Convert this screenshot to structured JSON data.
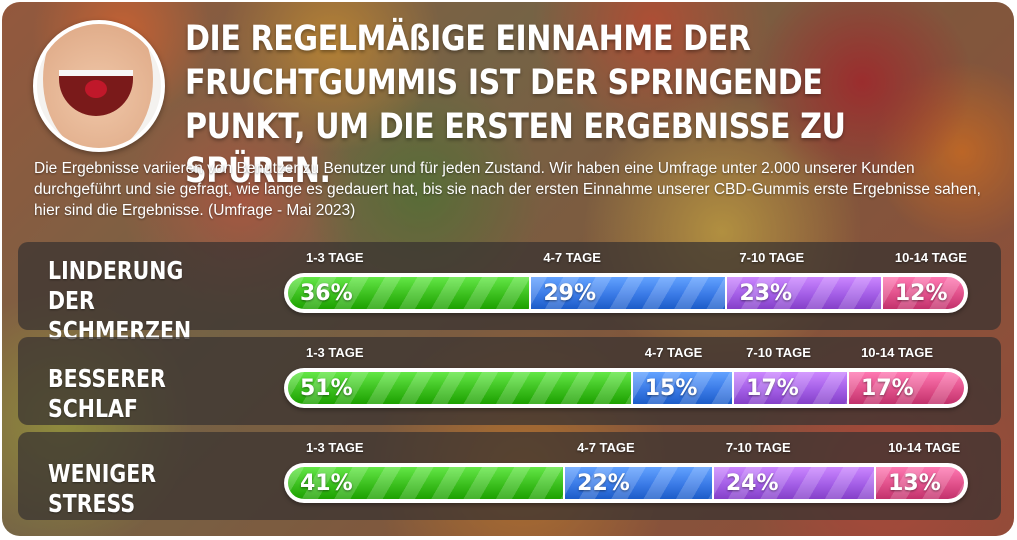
{
  "title": "DIE REGELMÄßIGE EINNAHME DER FRUCHTGUMMIS IST DER SPRINGENDE PUNKT, UM DIE ERSTEN ERGEBNISSE ZU SPÜREN.",
  "intro": "Die Ergebnisse variieren von Benutzer zu Benutzer und für jeden Zustand. Wir haben eine Umfrage unter 2.000 unserer Kunden durchgeführt und sie gefragt, wie lange es gedauert hat, bis sie nach der ersten Einnahme unserer CBD-Gummis erste Ergebnisse sahen, hier sind die Ergebnisse. (Umfrage - Mai 2023)",
  "avatar_icon": "smiling-mouth-with-gummy",
  "segment_colors": [
    "#3bbf1e",
    "#3a7ae6",
    "#a35ee6",
    "#e0508a"
  ],
  "rows": [
    {
      "label_lines": [
        "LINDERUNG",
        "DER SCHMERZEN"
      ],
      "segments": [
        {
          "period": "1-3 TAGE",
          "value": "36%",
          "share": 36
        },
        {
          "period": "4-7 TAGE",
          "value": "29%",
          "share": 29
        },
        {
          "period": "7-10 TAGE",
          "value": "23%",
          "share": 23
        },
        {
          "period": "10-14 TAGE",
          "value": "12%",
          "share": 12
        }
      ]
    },
    {
      "label_lines": [
        "BESSERER SCHLAF"
      ],
      "segments": [
        {
          "period": "1-3 TAGE",
          "value": "51%",
          "share": 51
        },
        {
          "period": "4-7 TAGE",
          "value": "15%",
          "share": 15
        },
        {
          "period": "7-10 TAGE",
          "value": "17%",
          "share": 17
        },
        {
          "period": "10-14 TAGE",
          "value": "17%",
          "share": 17
        }
      ]
    },
    {
      "label_lines": [
        "WENIGER STRESS"
      ],
      "segments": [
        {
          "period": "1-3 TAGE",
          "value": "41%",
          "share": 41
        },
        {
          "period": "4-7 TAGE",
          "value": "22%",
          "share": 22
        },
        {
          "period": "7-10 TAGE",
          "value": "24%",
          "share": 24
        },
        {
          "period": "10-14 TAGE",
          "value": "13%",
          "share": 13
        }
      ]
    }
  ]
}
